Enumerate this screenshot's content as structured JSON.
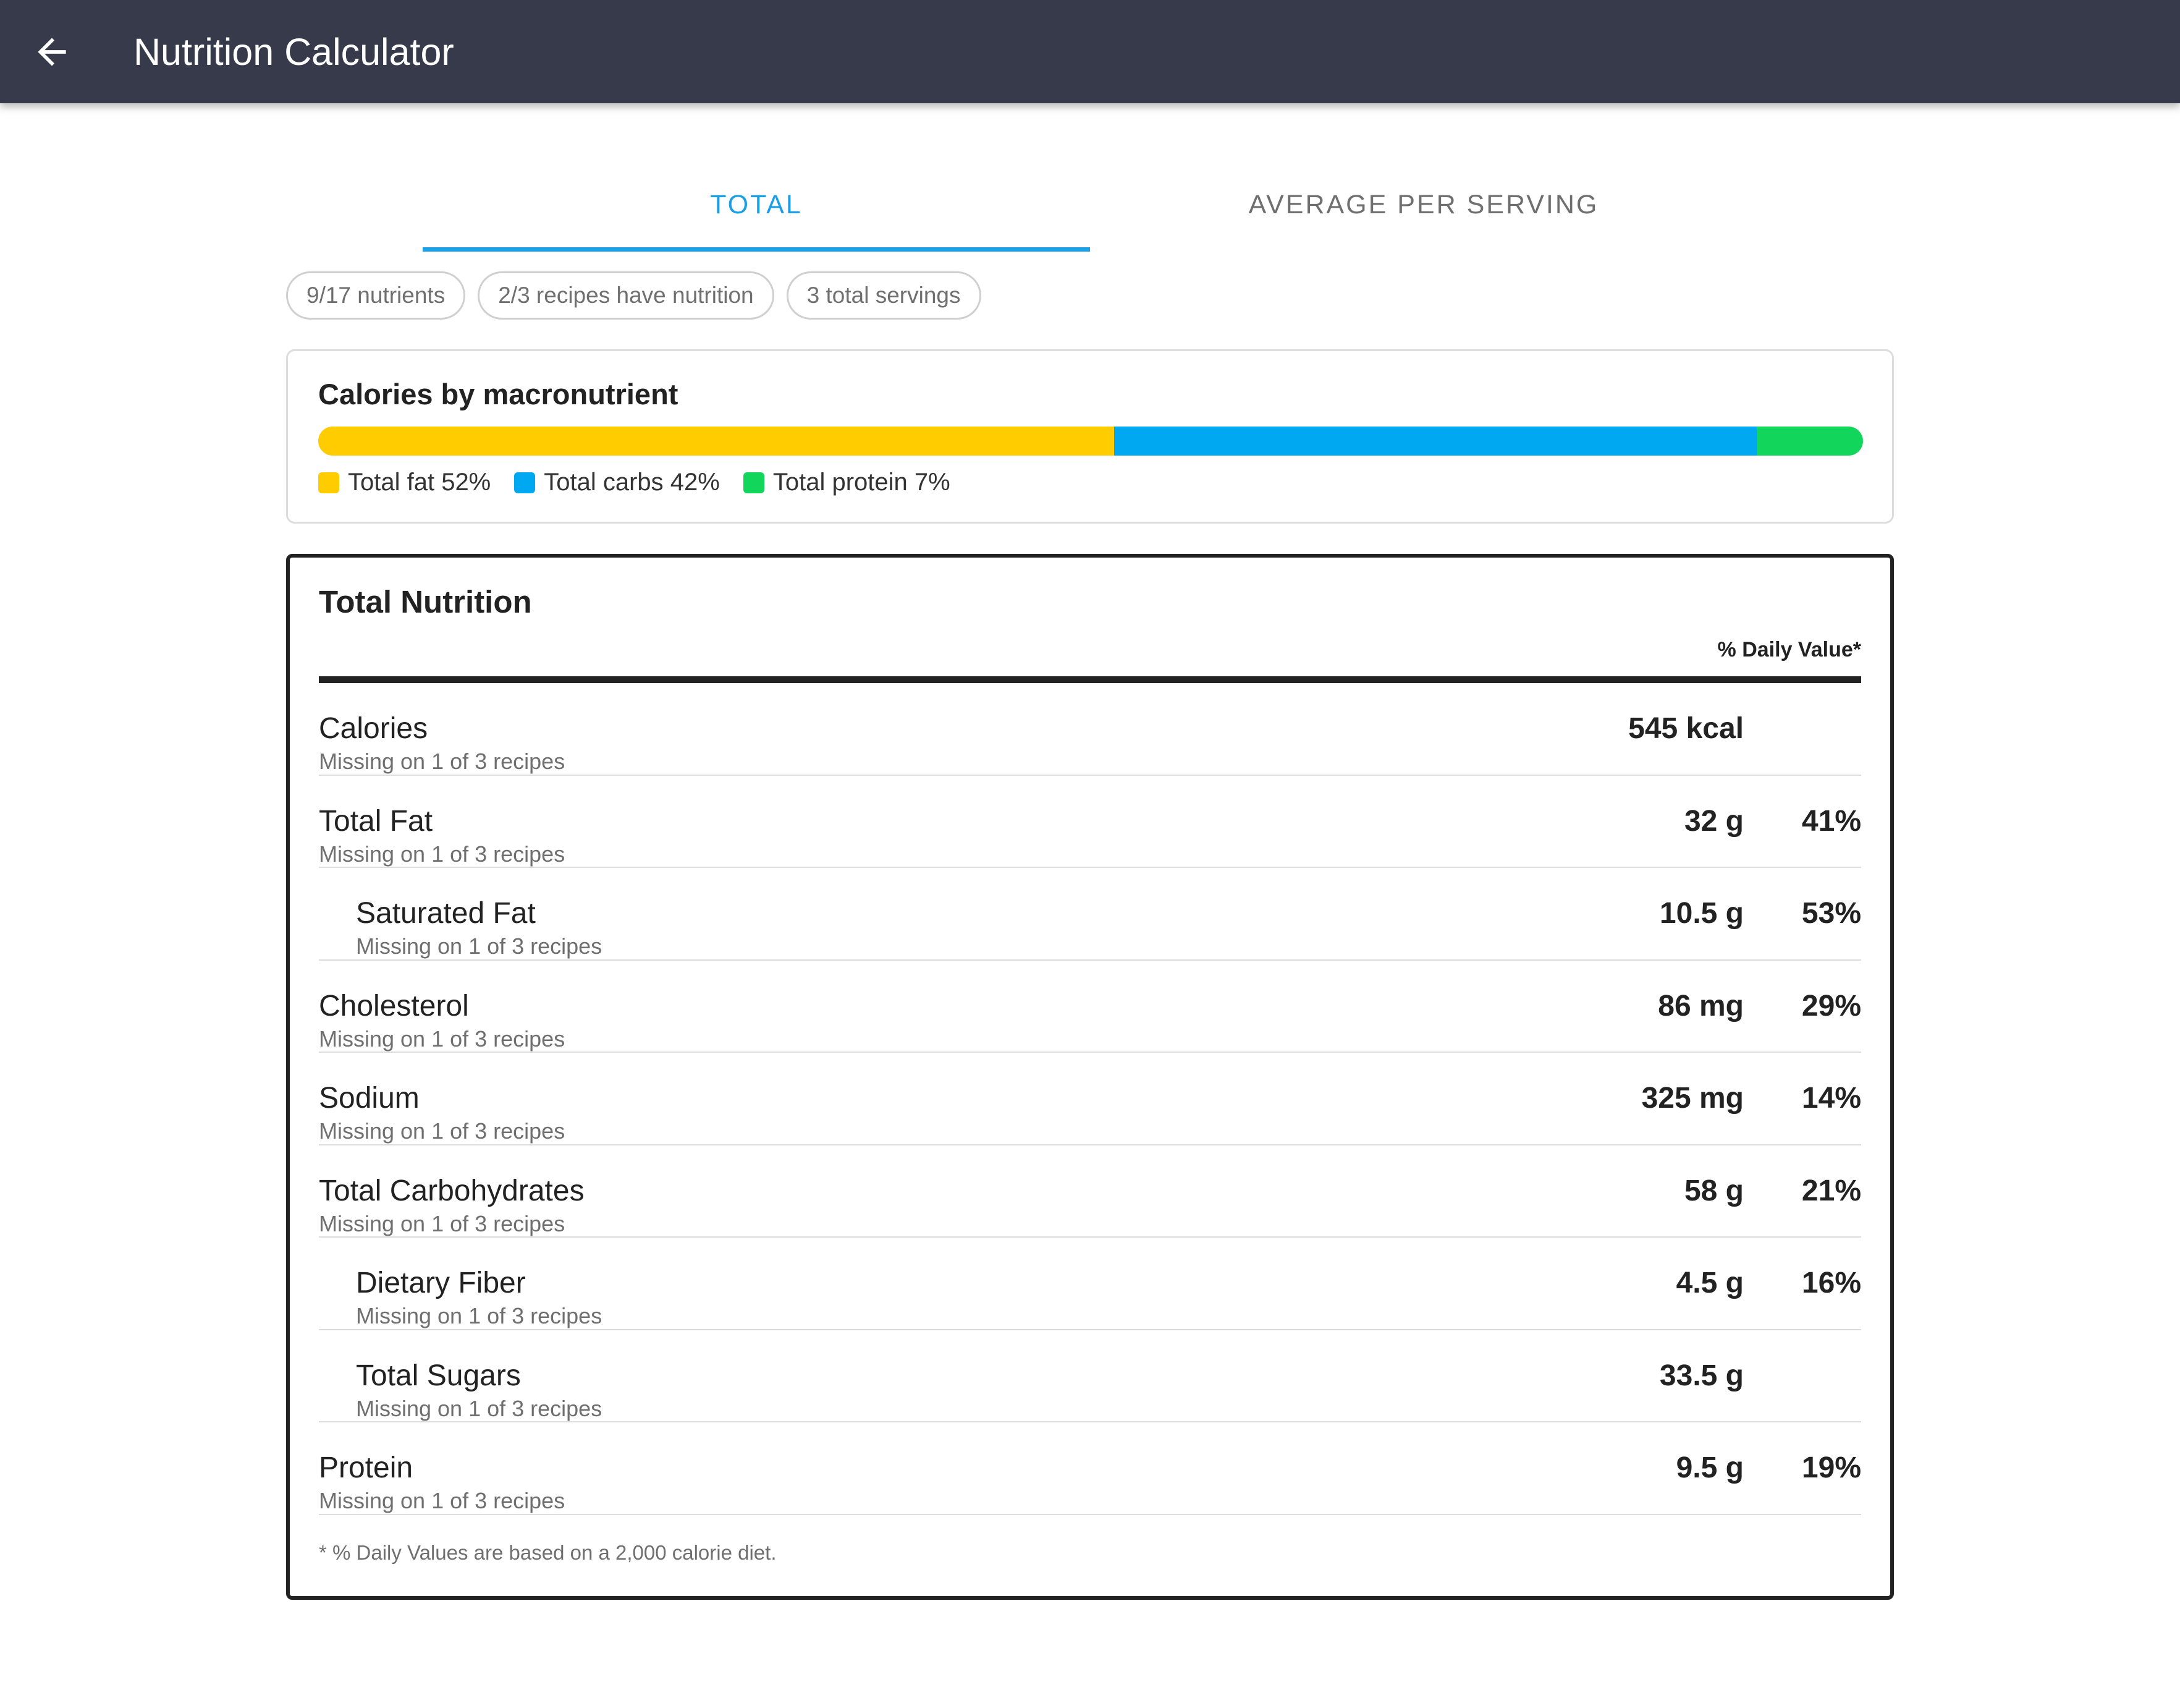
{
  "app_bar": {
    "title": "Nutrition Calculator",
    "back_icon": "arrow-left-icon"
  },
  "tabs": [
    {
      "label": "TOTAL",
      "active": true
    },
    {
      "label": "AVERAGE PER SERVING",
      "active": false
    }
  ],
  "chips": [
    {
      "label": "9/17 nutrients"
    },
    {
      "label": "2/3 recipes have nutrition"
    },
    {
      "label": "3 total servings"
    }
  ],
  "macro": {
    "title": "Calories by macronutrient",
    "segments": [
      {
        "label": "Total fat 52%",
        "percent": 51.5,
        "color": "#ffcc00"
      },
      {
        "label": "Total carbs 42%",
        "percent": 41.6,
        "color": "#00a8f2"
      },
      {
        "label": "Total protein 7%",
        "percent": 6.9,
        "color": "#12d65c"
      }
    ]
  },
  "nutrition": {
    "title": "Total Nutrition",
    "dv_header": "% Daily Value*",
    "rows": [
      {
        "name": "Calories",
        "missing": "Missing on 1 of 3 recipes",
        "amount": "545 kcal",
        "dv": "",
        "sub": false
      },
      {
        "name": "Total Fat",
        "missing": "Missing on 1 of 3 recipes",
        "amount": "32 g",
        "dv": "41%",
        "sub": false
      },
      {
        "name": "Saturated Fat",
        "missing": "Missing on 1 of 3 recipes",
        "amount": "10.5 g",
        "dv": "53%",
        "sub": true
      },
      {
        "name": "Cholesterol",
        "missing": "Missing on 1 of 3 recipes",
        "amount": "86 mg",
        "dv": "29%",
        "sub": false
      },
      {
        "name": "Sodium",
        "missing": "Missing on 1 of 3 recipes",
        "amount": "325 mg",
        "dv": "14%",
        "sub": false
      },
      {
        "name": "Total Carbohydrates",
        "missing": "Missing on 1 of 3 recipes",
        "amount": "58 g",
        "dv": "21%",
        "sub": false
      },
      {
        "name": "Dietary Fiber",
        "missing": "Missing on 1 of 3 recipes",
        "amount": "4.5 g",
        "dv": "16%",
        "sub": true
      },
      {
        "name": "Total Sugars",
        "missing": "Missing on 1 of 3 recipes",
        "amount": "33.5 g",
        "dv": "",
        "sub": true
      },
      {
        "name": "Protein",
        "missing": "Missing on 1 of 3 recipes",
        "amount": "9.5 g",
        "dv": "19%",
        "sub": false
      }
    ],
    "footnote": "* % Daily Values are based on a 2,000 calorie diet."
  }
}
